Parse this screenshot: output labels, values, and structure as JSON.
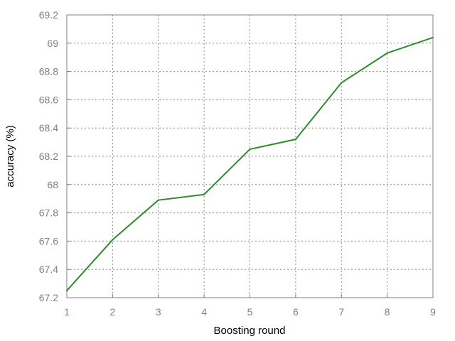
{
  "chart_data": {
    "type": "line",
    "title": "",
    "xlabel": "Boosting round",
    "ylabel": "accuracy (%)",
    "x": [
      1,
      2,
      3,
      4,
      5,
      6,
      7,
      8,
      9
    ],
    "series": [
      {
        "values": [
          67.25,
          67.61,
          67.89,
          67.93,
          68.25,
          68.32,
          68.72,
          68.93,
          69.04
        ],
        "color": "#2e8b2e"
      }
    ],
    "xlim": [
      1,
      9
    ],
    "ylim": [
      67.2,
      69.2
    ],
    "x_ticks": [
      "1",
      "2",
      "3",
      "4",
      "5",
      "6",
      "7",
      "8",
      "9"
    ],
    "y_ticks": [
      "67.2",
      "67.4",
      "67.6",
      "67.8",
      "68",
      "68.2",
      "68.4",
      "68.6",
      "68.8",
      "69",
      "69.2"
    ],
    "grid": true,
    "grid_style": "dotted",
    "legend": "none"
  }
}
